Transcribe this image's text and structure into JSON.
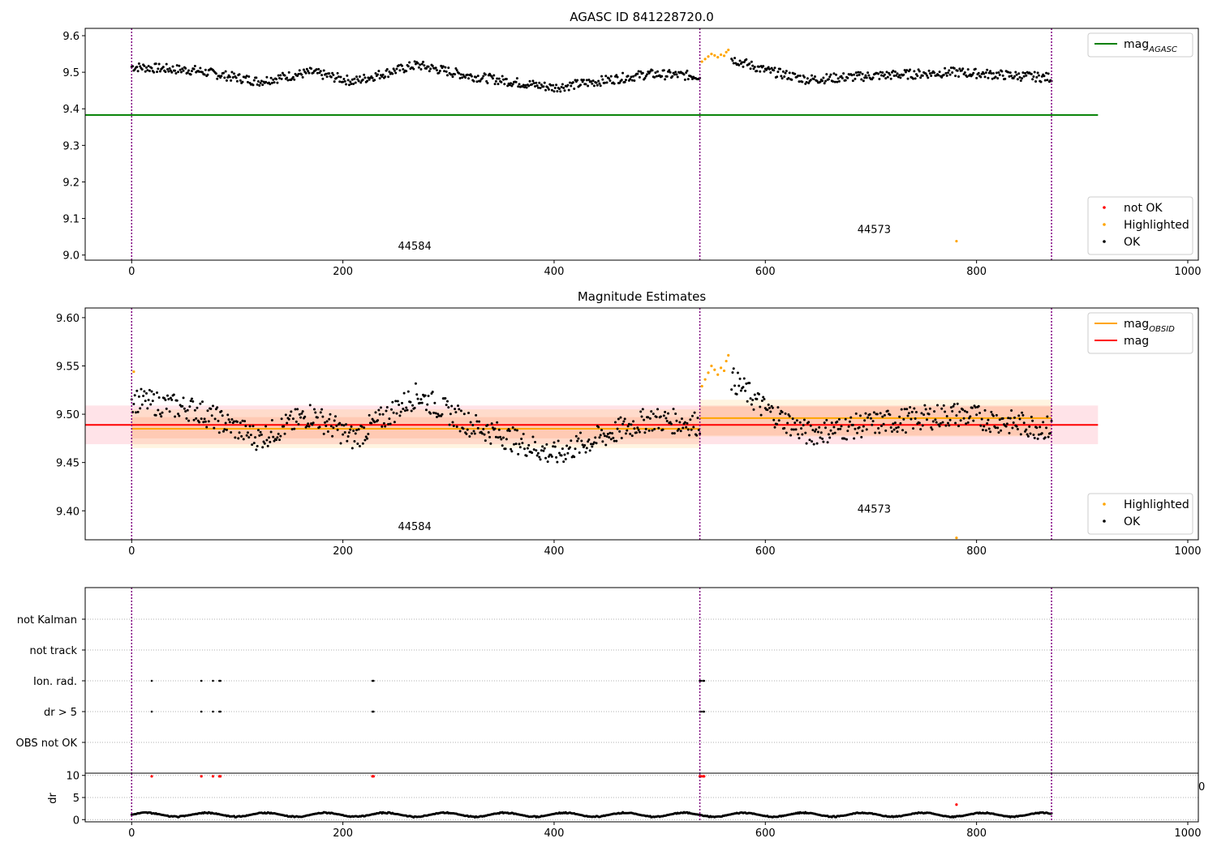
{
  "chart_data": [
    {
      "type": "scatter",
      "title": "AGASC ID 841228720.0",
      "xlim": [
        -44,
        1010
      ],
      "ylim": [
        8.986,
        9.62
      ],
      "xticks": [
        0,
        200,
        400,
        600,
        800,
        1000
      ],
      "yticks": [
        9.0,
        9.1,
        9.2,
        9.3,
        9.4,
        9.5,
        9.6
      ],
      "ytick_labels": [
        "9.0",
        "9.1",
        "9.2",
        "9.3",
        "9.4",
        "9.5",
        "9.6"
      ],
      "obs_boundaries": [
        0,
        538,
        871
      ],
      "obs_labels": [
        {
          "text": "44584",
          "x": 268,
          "y": 9.015
        },
        {
          "text": "44573",
          "x": 703,
          "y": 9.06
        }
      ],
      "lines": [
        {
          "name": "mag",
          "sub": "AGASC",
          "color": "#008000",
          "x": [
            -44,
            915
          ],
          "y": [
            9.383,
            9.383
          ]
        }
      ],
      "points": {
        "highlighted_x": [
          540,
          543,
          546,
          549,
          552,
          555,
          558,
          561,
          563,
          565
        ],
        "highlighted_y": [
          9.529,
          9.536,
          9.543,
          9.55,
          9.546,
          9.541,
          9.548,
          9.545,
          9.555,
          9.561
        ],
        "not_ok_x": [
          781
        ],
        "not_ok_y": [
          9.038
        ],
        "ok_trend": {
          "x": [
            0,
            60,
            120,
            170,
            210,
            270,
            320,
            400,
            490,
            538,
            545,
            560,
            600,
            640,
            700,
            780,
            840,
            871
          ],
          "y": [
            9.515,
            9.505,
            9.475,
            9.5,
            9.475,
            9.52,
            9.49,
            9.458,
            9.495,
            9.49,
            9.53,
            9.545,
            9.505,
            9.48,
            9.49,
            9.5,
            9.49,
            9.485
          ]
        },
        "ok_scatter": 0.013
      },
      "legends": [
        {
          "position": "top-right",
          "entries": [
            {
              "label": "mag",
              "sub": "AGASC",
              "kind": "line",
              "color": "#008000"
            }
          ]
        },
        {
          "position": "bottom-right",
          "entries": [
            {
              "label": "not OK",
              "kind": "dot",
              "color": "#ff0000"
            },
            {
              "label": "Highlighted",
              "kind": "dot",
              "color": "#ffa500"
            },
            {
              "label": "OK",
              "kind": "dot",
              "color": "#000000"
            }
          ]
        }
      ]
    },
    {
      "type": "scatter",
      "title": "Magnitude Estimates",
      "xlim": [
        -44,
        1010
      ],
      "ylim": [
        9.37,
        9.61
      ],
      "xticks": [
        0,
        200,
        400,
        600,
        800,
        1000
      ],
      "yticks": [
        9.4,
        9.45,
        9.5,
        9.55,
        9.6
      ],
      "ytick_labels": [
        "9.40",
        "9.45",
        "9.50",
        "9.55",
        "9.60"
      ],
      "obs_boundaries": [
        0,
        538,
        871
      ],
      "obs_labels": [
        {
          "text": "44584",
          "x": 268,
          "y": 9.38
        },
        {
          "text": "44573",
          "x": 703,
          "y": 9.398
        }
      ],
      "bands": [
        {
          "color": "#ffc0cb",
          "opacity": 0.45,
          "x": [
            -44,
            915
          ],
          "y": [
            9.469,
            9.509
          ]
        },
        {
          "color": "#ffa500",
          "opacity": 0.12,
          "x": [
            0,
            538
          ],
          "y": [
            9.465,
            9.505
          ]
        },
        {
          "color": "#ffa500",
          "opacity": 0.12,
          "x": [
            538,
            871
          ],
          "y": [
            9.477,
            9.515
          ]
        },
        {
          "color": "#ff7f50",
          "opacity": 0.18,
          "x": [
            0,
            538
          ],
          "y": [
            9.475,
            9.497
          ]
        },
        {
          "color": "#ff7f50",
          "opacity": 0.18,
          "x": [
            538,
            871
          ],
          "y": [
            9.478,
            9.508
          ]
        }
      ],
      "lines": [
        {
          "name": "mag",
          "sub": "OBSID",
          "color": "#ffa500",
          "x": [
            0,
            538
          ],
          "y": [
            9.485,
            9.485
          ]
        },
        {
          "name": "mag",
          "sub": "OBSID",
          "color": "#ffa500",
          "x": [
            538,
            871
          ],
          "y": [
            9.496,
            9.496
          ]
        },
        {
          "name": "mag",
          "sub": "",
          "color": "#ff0000",
          "x": [
            -44,
            915
          ],
          "y": [
            9.489,
            9.489
          ]
        }
      ],
      "points": {
        "highlighted_x": [
          2,
          540,
          543,
          546,
          549,
          552,
          555,
          558,
          561,
          563,
          565,
          781
        ],
        "highlighted_y": [
          9.544,
          9.529,
          9.536,
          9.543,
          9.55,
          9.546,
          9.541,
          9.548,
          9.545,
          9.555,
          9.561,
          9.372
        ],
        "ok_trend": {
          "x": [
            0,
            60,
            120,
            170,
            210,
            270,
            320,
            400,
            490,
            538,
            545,
            560,
            600,
            640,
            700,
            780,
            840,
            871
          ],
          "y": [
            9.515,
            9.505,
            9.475,
            9.5,
            9.475,
            9.52,
            9.49,
            9.458,
            9.495,
            9.49,
            9.53,
            9.545,
            9.505,
            9.48,
            9.49,
            9.5,
            9.49,
            9.485
          ]
        },
        "ok_scatter": 0.013
      },
      "legends": [
        {
          "position": "top-right",
          "entries": [
            {
              "label": "mag",
              "sub": "OBSID",
              "kind": "line",
              "color": "#ffa500"
            },
            {
              "label": "mag",
              "sub": "",
              "kind": "line",
              "color": "#ff0000"
            }
          ]
        },
        {
          "position": "bottom-right",
          "entries": [
            {
              "label": "Highlighted",
              "kind": "dot",
              "color": "#ffa500"
            },
            {
              "label": "OK",
              "kind": "dot",
              "color": "#000000"
            }
          ]
        }
      ]
    },
    {
      "type": "scatter",
      "title": "",
      "xlim": [
        -44,
        1010
      ],
      "categories": [
        "not Kalman",
        "not track",
        "Ion. rad.",
        "dr > 5",
        "OBS not OK"
      ],
      "flags": [
        {
          "category": "Ion. rad.",
          "x": [
            19,
            66,
            77,
            83,
            84,
            228,
            229,
            538,
            539,
            541,
            542
          ]
        },
        {
          "category": "dr > 5",
          "x": [
            19,
            66,
            77,
            83,
            84,
            228,
            229,
            538,
            539,
            541,
            542
          ]
        }
      ],
      "obs_boundaries": [
        0,
        538,
        871
      ]
    },
    {
      "type": "scatter",
      "title": "",
      "xlabel": "",
      "ylabel": "dr",
      "xlim": [
        -44,
        1010
      ],
      "ylim": [
        -0.5,
        10.5
      ],
      "xticks": [
        0,
        200,
        400,
        600,
        800,
        1000
      ],
      "yticks": [
        0,
        5,
        10
      ],
      "ytick_labels": [
        "0",
        "5",
        "10"
      ],
      "obs_boundaries": [
        0,
        538,
        871
      ],
      "points": {
        "red_x": [
          19,
          66,
          77,
          83,
          84,
          228,
          229,
          538,
          539,
          541,
          542,
          781
        ],
        "red_y": [
          9.8,
          9.8,
          9.8,
          9.8,
          9.8,
          9.8,
          9.8,
          9.8,
          9.8,
          9.8,
          9.8,
          3.4
        ],
        "dr_baseline": 1.1,
        "dr_wave": 0.6
      }
    }
  ],
  "obs_line_color": "#800080",
  "clipped_tick_text": "0"
}
